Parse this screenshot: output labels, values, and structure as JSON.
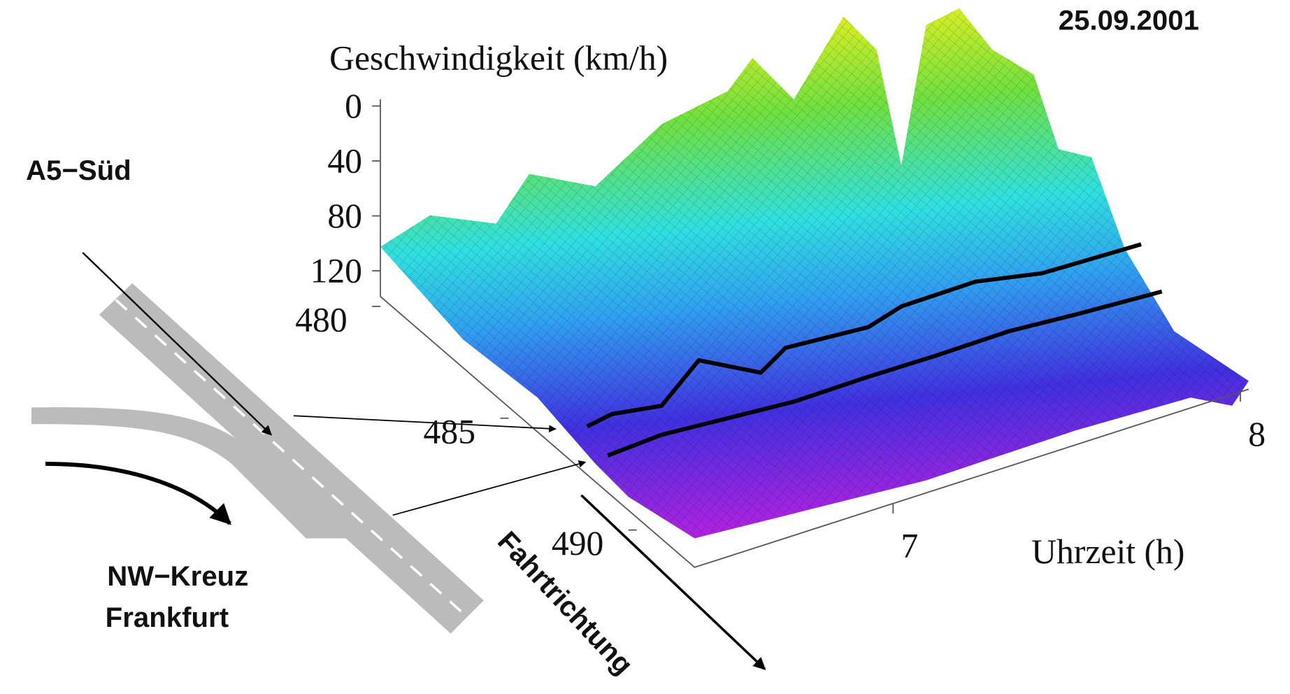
{
  "date": "25.09.2001",
  "speed_axis": {
    "label": "Geschwindigkeit (km/h)",
    "ticks": [
      0,
      40,
      80,
      120
    ]
  },
  "position_axis": {
    "ticks": [
      480,
      485,
      490
    ]
  },
  "time_axis": {
    "label": "Uhrzeit (h)",
    "ticks": [
      7,
      8
    ]
  },
  "labels": {
    "road": "A5−Süd",
    "junction": [
      "NW−Kreuz",
      "Frankfurt"
    ],
    "direction": "Fahrtrichtung"
  }
}
